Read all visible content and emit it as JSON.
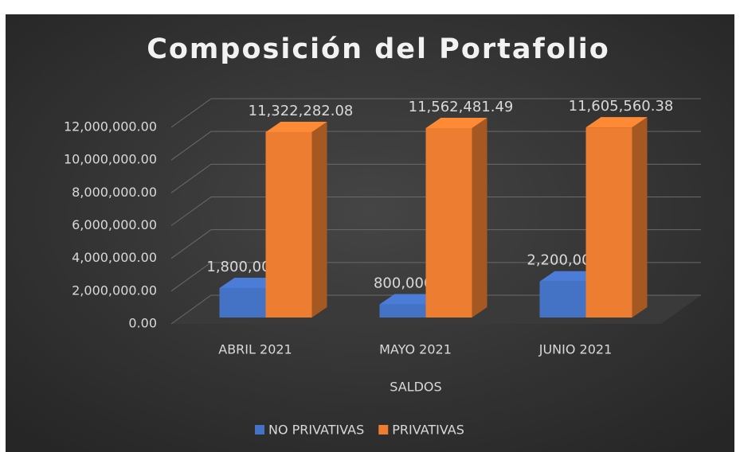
{
  "chart_data": {
    "type": "bar3d",
    "title": "Composición del Portafolio",
    "x_label": "SALDOS",
    "categories": [
      "ABRIL 2021",
      "MAYO 2021",
      "JUNIO 2021"
    ],
    "series": [
      {
        "name": "NO PRIVATIVAS",
        "color": "#4472c4",
        "values": [
          1800000,
          800000,
          2200000
        ],
        "value_labels": [
          "1,800,000.00",
          "800,000.00",
          "2,200,000.00"
        ]
      },
      {
        "name": "PRIVATIVAS",
        "color": "#ed7d31",
        "values": [
          11322282.08,
          11562481.49,
          11605560.38
        ],
        "value_labels": [
          "11,322,282.08",
          "11,562,481.49",
          "11,605,560.38"
        ]
      }
    ],
    "ylim": [
      0,
      12000000
    ],
    "yticks": [
      {
        "value": 0,
        "label": "0.00"
      },
      {
        "value": 2000000,
        "label": "2,000,000.00"
      },
      {
        "value": 4000000,
        "label": "4,000,000.00"
      },
      {
        "value": 6000000,
        "label": "6,000,000.00"
      },
      {
        "value": 8000000,
        "label": "8,000,000.00"
      },
      {
        "value": 10000000,
        "label": "10,000,000.00"
      },
      {
        "value": 12000000,
        "label": "12,000,000.00"
      }
    ],
    "grid": true,
    "legend": "bottom"
  }
}
